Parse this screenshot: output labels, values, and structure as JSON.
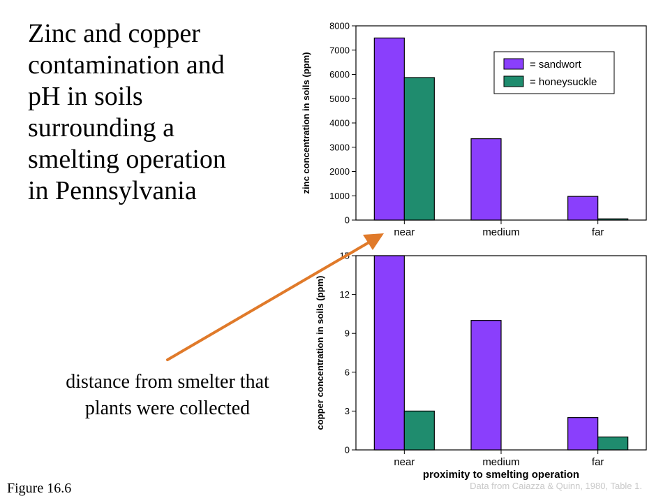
{
  "slide": {
    "title_lines": [
      "Zinc and copper",
      "contamination and",
      "pH in soils",
      "surrounding a",
      "smelting operation",
      "in Pennsylvania"
    ],
    "callout_lines": [
      "distance from smelter that",
      "plants were collected"
    ],
    "figure_label": "Figure 16.6",
    "source": "Data from Caiazza & Quinn, 1980, Table 1.",
    "colors": {
      "sandwort": "#8a3ffc",
      "honeysuckle": "#1f8c6e",
      "arrow": "#e07a2a"
    }
  },
  "chart_data": [
    {
      "type": "bar",
      "categories": [
        "near",
        "medium",
        "far"
      ],
      "series": [
        {
          "name": "= sandwort",
          "values": [
            7500,
            3350,
            975
          ]
        },
        {
          "name": "= honeysuckle",
          "values": [
            5870,
            0,
            50
          ]
        }
      ],
      "ylabel": "zinc concentration in soils (ppm)",
      "xlabel": "",
      "ylim": [
        0,
        8000
      ],
      "yticks": [
        "0",
        "1000",
        "2000",
        "3000",
        "4000",
        "5000",
        "6000",
        "7000",
        "8000"
      ],
      "legend": "top-right",
      "grid": false
    },
    {
      "type": "bar",
      "categories": [
        "near",
        "medium",
        "far"
      ],
      "series": [
        {
          "name": "= sandwort",
          "values": [
            15,
            10,
            2.5
          ]
        },
        {
          "name": "= honeysuckle",
          "values": [
            3,
            0,
            1
          ]
        }
      ],
      "ylabel": "copper concentration in soils (ppm)",
      "xlabel": "proximity to smelting operation",
      "ylim": [
        0,
        15
      ],
      "yticks": [
        "0",
        "3",
        "6",
        "9",
        "12",
        "15"
      ],
      "grid": false
    }
  ]
}
